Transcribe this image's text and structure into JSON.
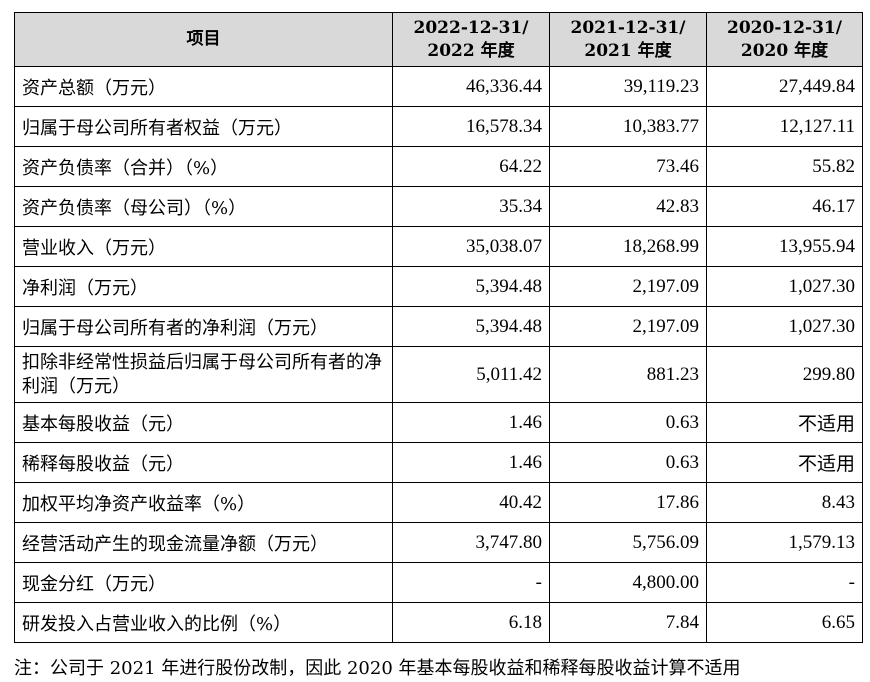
{
  "table": {
    "headers": [
      "项目",
      "2022-12-31/\n2022 年度",
      "2021-12-31/\n2021 年度",
      "2020-12-31/\n2020 年度"
    ],
    "header_lines": [
      {
        "l1": "2022-12-31/",
        "l2": "2022 年度"
      },
      {
        "l1": "2021-12-31/",
        "l2": "2021 年度"
      },
      {
        "l1": "2020-12-31/",
        "l2": "2020 年度"
      }
    ],
    "rows": [
      {
        "label": "资产总额（万元）",
        "v2022": "46,336.44",
        "v2021": "39,119.23",
        "v2020": "27,449.84"
      },
      {
        "label": "归属于母公司所有者权益（万元）",
        "v2022": "16,578.34",
        "v2021": "10,383.77",
        "v2020": "12,127.11"
      },
      {
        "label": "资产负债率（合并）（%）",
        "v2022": "64.22",
        "v2021": "73.46",
        "v2020": "55.82"
      },
      {
        "label": "资产负债率（母公司）（%）",
        "v2022": "35.34",
        "v2021": "42.83",
        "v2020": "46.17"
      },
      {
        "label": "营业收入（万元）",
        "v2022": "35,038.07",
        "v2021": "18,268.99",
        "v2020": "13,955.94"
      },
      {
        "label": "净利润（万元）",
        "v2022": "5,394.48",
        "v2021": "2,197.09",
        "v2020": "1,027.30"
      },
      {
        "label": "归属于母公司所有者的净利润（万元）",
        "v2022": "5,394.48",
        "v2021": "2,197.09",
        "v2020": "1,027.30"
      },
      {
        "label": "扣除非经常性损益后归属于母公司所有者的净利润（万元）",
        "v2022": "5,011.42",
        "v2021": "881.23",
        "v2020": "299.80"
      },
      {
        "label": "基本每股收益（元）",
        "v2022": "1.46",
        "v2021": "0.63",
        "v2020": "不适用"
      },
      {
        "label": "稀释每股收益（元）",
        "v2022": "1.46",
        "v2021": "0.63",
        "v2020": "不适用"
      },
      {
        "label": "加权平均净资产收益率（%）",
        "v2022": "40.42",
        "v2021": "17.86",
        "v2020": "8.43"
      },
      {
        "label": "经营活动产生的现金流量净额（万元）",
        "v2022": "3,747.80",
        "v2021": "5,756.09",
        "v2020": "1,579.13"
      },
      {
        "label": "现金分红（万元）",
        "v2022": "-",
        "v2021": "4,800.00",
        "v2020": "-"
      },
      {
        "label": "研发投入占营业收入的比例（%）",
        "v2022": "6.18",
        "v2021": "7.84",
        "v2020": "6.65"
      }
    ]
  },
  "note": "注：公司于 2021 年进行股份改制，因此 2020 年基本每股收益和稀释每股收益计算不适用"
}
